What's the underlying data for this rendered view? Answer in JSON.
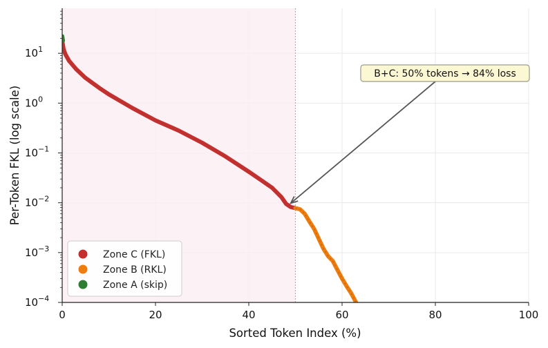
{
  "chart_data": {
    "type": "line",
    "xlabel": "Sorted Token Index (%)",
    "ylabel": "Per-Token FKL (log scale)",
    "xlim": [
      0,
      100
    ],
    "ylim": [
      0.0001,
      80
    ],
    "yscale": "log",
    "grid": true,
    "x_ticks": [
      {
        "value": 0,
        "label": "0"
      },
      {
        "value": 20,
        "label": "20"
      },
      {
        "value": 40,
        "label": "40"
      },
      {
        "value": 60,
        "label": "60"
      },
      {
        "value": 80,
        "label": "80"
      },
      {
        "value": 100,
        "label": "100"
      }
    ],
    "y_ticks": [
      {
        "value": 0.0001,
        "base": "10",
        "exp": "−4"
      },
      {
        "value": 0.001,
        "base": "10",
        "exp": "−3"
      },
      {
        "value": 0.01,
        "base": "10",
        "exp": "−2"
      },
      {
        "value": 0.1,
        "base": "10",
        "exp": "−1"
      },
      {
        "value": 1,
        "base": "10",
        "exp": "0"
      },
      {
        "value": 10,
        "base": "10",
        "exp": "1"
      }
    ],
    "shaded_region": {
      "x_start": 0,
      "x_end": 50,
      "color": "#fbeef1"
    },
    "vline": {
      "x": 50,
      "color": "#c9a0ab"
    },
    "series": [
      {
        "name": "Zone C (FKL)",
        "color": "#c62f2f",
        "points": [
          [
            0,
            18
          ],
          [
            0.3,
            12
          ],
          [
            0.7,
            9.5
          ],
          [
            1.5,
            7.0
          ],
          [
            3,
            4.8
          ],
          [
            5,
            3.2
          ],
          [
            8,
            2.0
          ],
          [
            10,
            1.5
          ],
          [
            15,
            0.8
          ],
          [
            20,
            0.45
          ],
          [
            25,
            0.28
          ],
          [
            30,
            0.16
          ],
          [
            35,
            0.085
          ],
          [
            40,
            0.042
          ],
          [
            43,
            0.027
          ],
          [
            45,
            0.02
          ],
          [
            47,
            0.013
          ],
          [
            48,
            0.0095
          ],
          [
            49,
            0.0082
          ],
          [
            50,
            0.0078
          ]
        ]
      },
      {
        "name": "Zone B (RKL)",
        "color": "#ef7d0e",
        "points": [
          [
            50,
            0.0078
          ],
          [
            51,
            0.0074
          ],
          [
            52,
            0.006
          ],
          [
            53,
            0.0042
          ],
          [
            54,
            0.003
          ],
          [
            55,
            0.0019
          ],
          [
            56,
            0.0012
          ],
          [
            57,
            0.00085
          ],
          [
            58,
            0.00068
          ],
          [
            59,
            0.00045
          ],
          [
            60,
            0.0003
          ],
          [
            61,
            0.00021
          ],
          [
            62,
            0.00015
          ],
          [
            63,
            0.0001
          ]
        ]
      },
      {
        "name": "Zone A (skip)",
        "color": "#2e7d32",
        "points": [
          [
            0,
            22
          ],
          [
            0.15,
            18
          ]
        ]
      }
    ],
    "legend": {
      "placement": "lower-left",
      "entries": [
        {
          "label": "Zone C (FKL)",
          "color": "#c62f2f"
        },
        {
          "label": "Zone B (RKL)",
          "color": "#ef7d0e"
        },
        {
          "label": "Zone A (skip)",
          "color": "#2e7d32"
        }
      ]
    },
    "annotation": {
      "text": "B+C: 50% tokens → 84% loss",
      "target": [
        49,
        0.0098
      ],
      "box_color": "#fdf8d4",
      "border_color": "#9a9a8a",
      "arrow_color": "#555555"
    }
  }
}
